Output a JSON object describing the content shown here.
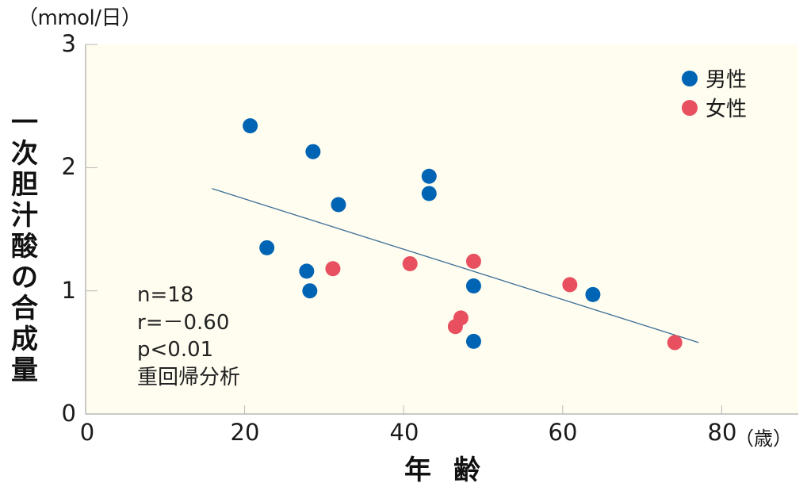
{
  "colors": {
    "plot_background": "#fffdf0",
    "axis": "#b8b8b8",
    "male": "#0064b4",
    "female": "#e8505f",
    "regression_line": "#3c6e96"
  },
  "labels": {
    "y_unit": "（mmol/日）",
    "y_title_chars": [
      "一",
      "次",
      "胆",
      "汁",
      "酸",
      "の",
      "合",
      "成",
      "量"
    ],
    "x_title": "年齢",
    "x_unit": "（歳）"
  },
  "stats": {
    "n": "n=18",
    "r": "r=－0.60",
    "p": "p<0.01",
    "method": "重回帰分析"
  },
  "legend": {
    "male": "男性",
    "female": "女性"
  },
  "chart_data": {
    "type": "scatter",
    "title": "",
    "xlabel": "年齢（歳）",
    "ylabel": "一次胆汁酸の合成量（mmol/日）",
    "xlim": [
      0,
      89
    ],
    "ylim": [
      0,
      3
    ],
    "x_ticks": [
      0,
      20,
      40,
      60,
      80
    ],
    "y_ticks": [
      0,
      1,
      2,
      3
    ],
    "grid": false,
    "legend_position": "top-right",
    "series": [
      {
        "name": "男性",
        "color": "#0064b4",
        "points": [
          [
            20.7,
            2.34
          ],
          [
            28.6,
            2.13
          ],
          [
            31.8,
            1.7
          ],
          [
            22.8,
            1.35
          ],
          [
            27.8,
            1.16
          ],
          [
            28.2,
            1.0
          ],
          [
            43.2,
            1.93
          ],
          [
            43.2,
            1.79
          ],
          [
            48.8,
            1.04
          ],
          [
            48.8,
            0.59
          ],
          [
            63.8,
            0.97
          ]
        ]
      },
      {
        "name": "女性",
        "color": "#e8505f",
        "points": [
          [
            31.1,
            1.18
          ],
          [
            40.8,
            1.22
          ],
          [
            48.8,
            1.24
          ],
          [
            47.2,
            0.78
          ],
          [
            46.5,
            0.71
          ],
          [
            60.9,
            1.05
          ],
          [
            74.1,
            0.58
          ]
        ]
      }
    ],
    "regression_line": {
      "x": [
        15.9,
        77.1
      ],
      "y": [
        1.83,
        0.58
      ]
    },
    "annotations": [
      "n=18",
      "r=－0.60",
      "p<0.01",
      "重回帰分析"
    ]
  }
}
